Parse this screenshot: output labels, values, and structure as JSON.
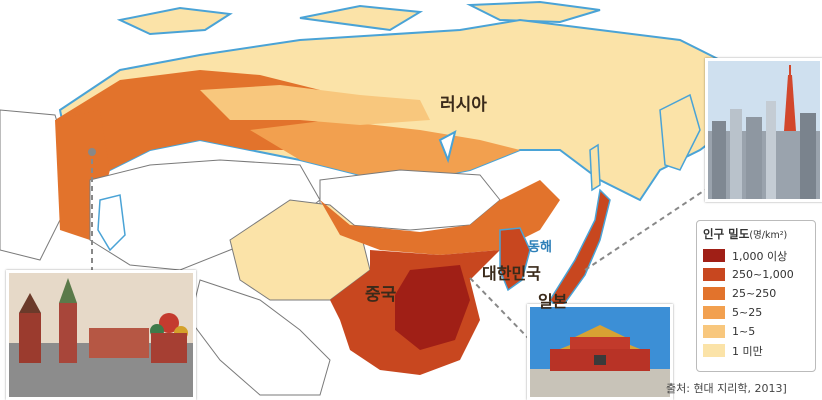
{
  "map": {
    "labels": {
      "russia": "러시아",
      "china": "중국",
      "korea": "대한민국",
      "japan": "일본",
      "east_sea": "동해"
    }
  },
  "legend": {
    "title": "인구 밀도",
    "unit": "(명/km²)",
    "items": [
      {
        "label": "1,000 이상",
        "color": "#a01f16"
      },
      {
        "label": "250~1,000",
        "color": "#c8471f"
      },
      {
        "label": "25~250",
        "color": "#e2732c"
      },
      {
        "label": "5~25",
        "color": "#f2a04f"
      },
      {
        "label": "1~5",
        "color": "#f8c77d"
      },
      {
        "label": "1 미만",
        "color": "#fbe3a8"
      }
    ]
  },
  "source": "출처: 현대 지리학, 2013]",
  "colors": {
    "water": "#ffffff",
    "coast": "#4aa3d6",
    "border": "#7a7a7a"
  }
}
